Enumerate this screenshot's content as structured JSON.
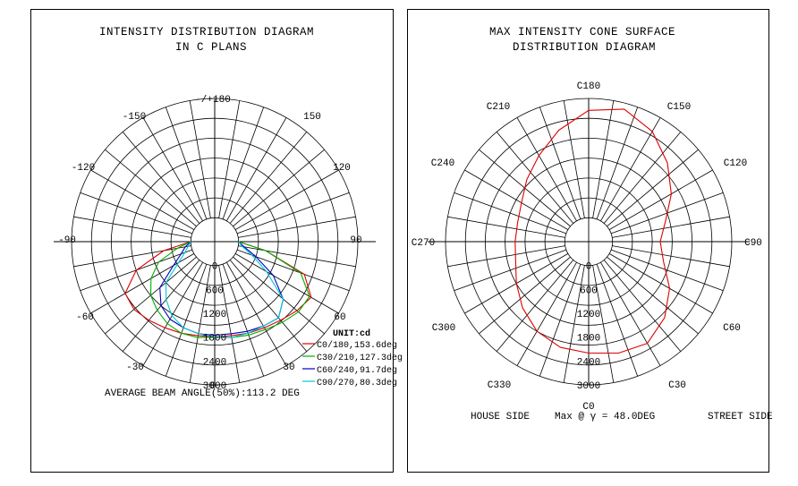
{
  "colors": {
    "c0": "#e00000",
    "c30": "#00b000",
    "c60": "#0000c0",
    "c90": "#00c8d8",
    "grid": "#000000"
  },
  "chart_data": [
    {
      "type": "polar",
      "title": [
        "INTENSITY DISTRIBUTION DIAGRAM",
        "IN C PLANS"
      ],
      "angle_labels": [
        "-/+180",
        "150",
        "120",
        "90",
        "60",
        "30",
        "0",
        "-30",
        "-60",
        "-90",
        "-120",
        "-150"
      ],
      "radial_labels": [
        "0",
        "600",
        "1200",
        "1800",
        "2400",
        "3000"
      ],
      "rmax": 3000,
      "grid": true,
      "legend_title": "UNIT:cd",
      "legend_position": "bottom-right",
      "series": [
        {
          "name": "C0/180,153.6deg",
          "color": "#e00000",
          "gamma": [
            -90,
            -80,
            -70,
            -60,
            -50,
            -40,
            -30,
            -20,
            -10,
            0,
            10,
            20,
            30,
            40,
            50,
            60,
            70,
            80,
            90
          ],
          "values": [
            0,
            700,
            1500,
            2000,
            2050,
            1980,
            1900,
            1850,
            1800,
            1800,
            1800,
            1850,
            1900,
            1980,
            2100,
            2200,
            1800,
            700,
            0
          ]
        },
        {
          "name": "C30/210,127.3deg",
          "color": "#00b000",
          "gamma": [
            -90,
            -80,
            -70,
            -60,
            -50,
            -40,
            -30,
            -20,
            -10,
            0,
            10,
            20,
            30,
            40,
            50,
            60,
            70,
            80,
            90
          ],
          "values": [
            0,
            350,
            900,
            1250,
            1500,
            1650,
            1780,
            1850,
            1850,
            1800,
            1850,
            1900,
            1950,
            2050,
            2150,
            2150,
            1700,
            700,
            0
          ]
        },
        {
          "name": "C60/240,91.7deg",
          "color": "#0000c0",
          "gamma": [
            -90,
            -80,
            -70,
            -60,
            -50,
            -40,
            -30,
            -20,
            -10,
            0,
            10,
            20,
            30,
            40,
            50,
            60,
            70,
            80,
            90
          ],
          "values": [
            0,
            150,
            300,
            600,
            1200,
            1500,
            1650,
            1700,
            1750,
            1750,
            1750,
            1800,
            1850,
            1900,
            1650,
            1100,
            500,
            150,
            0
          ]
        },
        {
          "name": "C90/270,80.3deg",
          "color": "#00c8d8",
          "gamma": [
            -90,
            -80,
            -70,
            -60,
            -50,
            -40,
            -30,
            -20,
            -10,
            0,
            10,
            20,
            30,
            40,
            50,
            60,
            70,
            80,
            90
          ],
          "values": [
            0,
            80,
            200,
            450,
            1000,
            1300,
            1550,
            1700,
            1750,
            1800,
            1850,
            1850,
            1850,
            1900,
            1650,
            900,
            400,
            100,
            0
          ]
        }
      ],
      "footer": "AVERAGE BEAM ANGLE(50%):113.2 DEG"
    },
    {
      "type": "polar",
      "title": [
        "MAX INTENSITY CONE SURFACE",
        "DISTRIBUTION DIAGRAM"
      ],
      "angle_labels": [
        "C180",
        "C150",
        "C120",
        "C90",
        "C60",
        "C30",
        "C0",
        "C330",
        "C300",
        "C270",
        "C240",
        "C210"
      ],
      "radial_labels": [
        "0",
        "600",
        "1200",
        "1800",
        "2400",
        "3000"
      ],
      "rmax": 3000,
      "grid": true,
      "series": [
        {
          "name": "",
          "color": "#e00000",
          "c_angle": [
            0,
            15,
            30,
            45,
            60,
            75,
            90,
            105,
            120,
            135,
            150,
            165,
            180,
            195,
            210,
            225,
            240,
            255,
            270,
            285,
            300,
            315,
            330,
            345
          ],
          "values": [
            2200,
            2300,
            2350,
            2100,
            1750,
            1350,
            1200,
            1400,
            1800,
            2200,
            2600,
            2850,
            2700,
            2300,
            1900,
            1600,
            1350,
            1250,
            1250,
            1300,
            1500,
            1750,
            2000,
            2150
          ]
        }
      ],
      "footer_left": "HOUSE SIDE",
      "footer_mid": "Max @ γ = 48.0DEG",
      "footer_right": "STREET SIDE"
    }
  ]
}
